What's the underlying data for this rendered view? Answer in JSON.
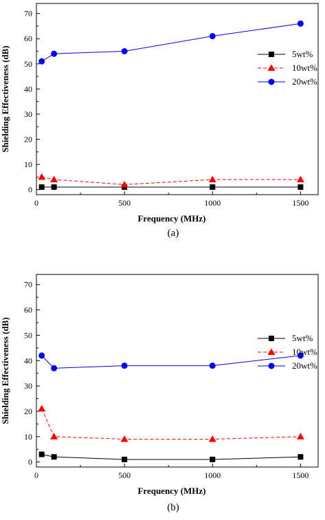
{
  "chart_data": [
    {
      "type": "line",
      "caption": "(a)",
      "xlabel": "Frequency (MHz)",
      "ylabel": "Shielding Effectiveness (dB)",
      "xlim": [
        0,
        1600
      ],
      "ylim": [
        -2,
        74
      ],
      "xticks": [
        0,
        500,
        1000,
        1500
      ],
      "yticks": [
        0,
        10,
        20,
        30,
        40,
        50,
        60,
        70
      ],
      "grid": false,
      "legend_position": "right-upper",
      "series": [
        {
          "name": "5wt%",
          "color": "#000000",
          "marker": "square",
          "dash": "solid",
          "x": [
            30,
            100,
            500,
            1000,
            1500
          ],
          "y": [
            1,
            1,
            1,
            1,
            1
          ]
        },
        {
          "name": "10wt%",
          "color": "#ff0000",
          "marker": "triangle",
          "dash": "dashed",
          "x": [
            30,
            100,
            500,
            1000,
            1500
          ],
          "y": [
            5,
            4,
            2,
            4,
            4
          ]
        },
        {
          "name": "20wt%",
          "color": "#0000ee",
          "marker": "circle",
          "dash": "solid",
          "x": [
            30,
            100,
            500,
            1000,
            1500
          ],
          "y": [
            51,
            54,
            55,
            61,
            66
          ]
        }
      ]
    },
    {
      "type": "line",
      "caption": "(b)",
      "xlabel": "Frequency (MHz)",
      "ylabel": "Shielding Effectiveness (dB)",
      "xlim": [
        0,
        1600
      ],
      "ylim": [
        -2,
        74
      ],
      "xticks": [
        0,
        500,
        1000,
        1500
      ],
      "yticks": [
        0,
        10,
        20,
        30,
        40,
        50,
        60,
        70
      ],
      "grid": false,
      "legend_position": "top-right",
      "series": [
        {
          "name": "5wt%",
          "color": "#000000",
          "marker": "square",
          "dash": "solid",
          "x": [
            30,
            100,
            500,
            1000,
            1500
          ],
          "y": [
            3,
            2,
            1,
            1,
            2
          ]
        },
        {
          "name": "10wt%",
          "color": "#ff0000",
          "marker": "triangle",
          "dash": "dashed",
          "x": [
            30,
            100,
            500,
            1000,
            1500
          ],
          "y": [
            21,
            10,
            9,
            9,
            10
          ]
        },
        {
          "name": "20wt%",
          "color": "#0000ee",
          "marker": "circle",
          "dash": "solid",
          "x": [
            30,
            100,
            500,
            1000,
            1500
          ],
          "y": [
            42,
            37,
            38,
            38,
            42
          ]
        }
      ]
    }
  ]
}
